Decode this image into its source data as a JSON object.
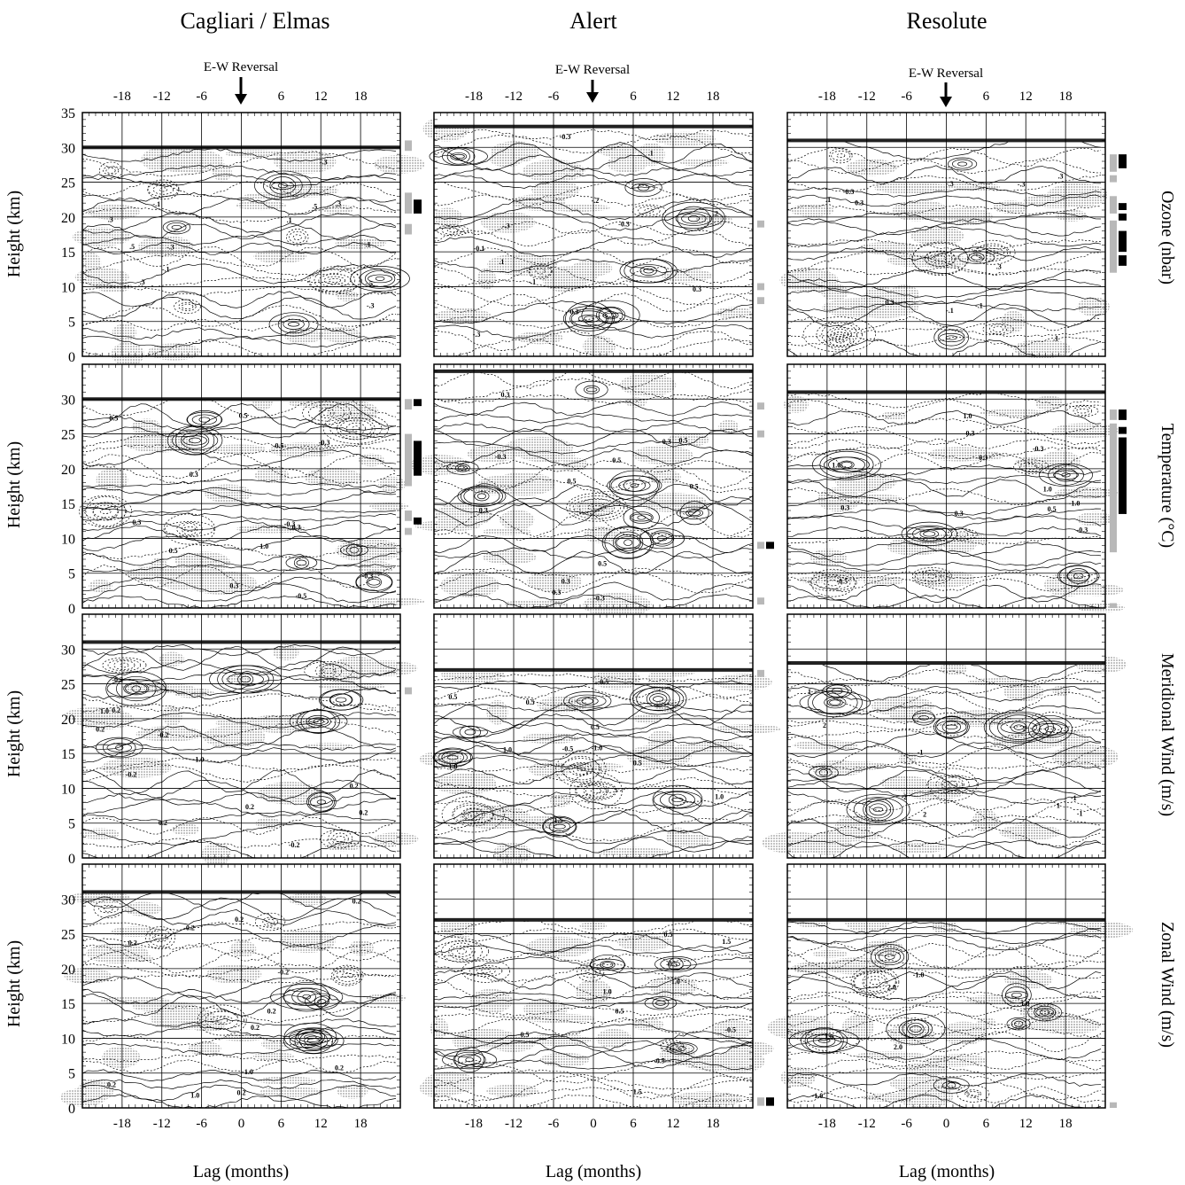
{
  "figure": {
    "columns": [
      "Cagliari / Elmas",
      "Alert",
      "Resolute"
    ],
    "row_labels": [
      "Ozone (nbar)",
      "Temperature (°C)",
      "Meridional Wind (m/s)",
      "Zonal Wind (m/s)"
    ],
    "y_axis_label": "Height (km)",
    "x_axis_label": "Lag (months)",
    "reversal_label": "E-W Reversal",
    "colors": {
      "shade": "#c8c8c8",
      "contour": "#000000",
      "grid": "#000000",
      "sig_gray": "#b8b8b8",
      "sig_black": "#000000"
    }
  },
  "chart_data": {
    "type": "heatmap",
    "description_units": {
      "x": "months",
      "y": "km"
    },
    "xlim": [
      -24,
      24
    ],
    "x_ticks": [
      -18,
      -12,
      -6,
      0,
      6,
      12,
      18
    ],
    "x_tick_labels": [
      "-18",
      "-12",
      "-6",
      "0",
      "6",
      "12",
      "18"
    ],
    "ylim": [
      0,
      35
    ],
    "y_ticks_top_row": [
      0,
      5,
      10,
      15,
      20,
      25,
      30,
      35
    ],
    "y_ticks_other_rows": [
      0,
      5,
      10,
      15,
      20,
      25,
      30
    ],
    "reversal_lag": 0,
    "panels": [
      {
        "station": "Cagliari / Elmas",
        "variable": "Ozone (nbar)",
        "data_top_km": 30,
        "contour_labels": [
          "-.3",
          "-.5",
          "-.3",
          ".3",
          ".5",
          ".5",
          ".3",
          ".3",
          "-.1",
          ".1",
          "-.1",
          "-.3",
          ".1"
        ]
      },
      {
        "station": "Alert",
        "variable": "Ozone (nbar)",
        "data_top_km": 33,
        "contour_labels": [
          ".1",
          "-.3",
          ".2",
          "-.2",
          ".1",
          "-.1",
          "-.3",
          "-0.3",
          "-0.1",
          "-0.3",
          "0.3",
          "0.3"
        ]
      },
      {
        "station": "Resolute",
        "variable": "Ozone (nbar)",
        "data_top_km": 31,
        "contour_labels": [
          ".3",
          ".3",
          "-.1",
          ".1",
          "-.3",
          "-.1",
          ".1",
          "-.3",
          "0.3",
          "0.3",
          "-0.3"
        ]
      },
      {
        "station": "Cagliari / Elmas",
        "variable": "Temperature (°C)",
        "data_top_km": 30,
        "contour_labels": [
          "-0.5",
          "0.5",
          "0.3",
          "-0.3",
          "0.3",
          "-0.5",
          "0.5",
          "-0.3",
          "0.3",
          "0.5",
          "1.0",
          "-0.3",
          "0.3"
        ]
      },
      {
        "station": "Alert",
        "variable": "Temperature (°C)",
        "data_top_km": 34,
        "contour_labels": [
          "0.5",
          "-0.3",
          "0.3",
          "0.3",
          "0.5",
          "-0.3",
          "0.5",
          "0.3",
          "0.3",
          "0.5",
          "0.3",
          "0.5"
        ]
      },
      {
        "station": "Resolute",
        "variable": "Temperature (°C)",
        "data_top_km": 31,
        "contour_labels": [
          "-1.0",
          "0.3",
          "1.0",
          "-0.3",
          "1.0",
          "0.3",
          "-0.3",
          "0.3",
          "0.5",
          "-0.5",
          "1.0",
          "0.3"
        ]
      },
      {
        "station": "Cagliari / Elmas",
        "variable": "Meridional Wind (m/s)",
        "data_top_km": 31,
        "contour_labels": [
          "0.2",
          "-0.2",
          "0.2",
          "-0.2",
          "0.2",
          "-0.2",
          "1.0",
          "-0.2",
          "0.2",
          "1.0",
          "0.2",
          "0.2"
        ]
      },
      {
        "station": "Alert",
        "variable": "Meridional Wind (m/s)",
        "data_top_km": 27,
        "contour_labels": [
          "0.5",
          "1.0",
          "0.5",
          "1.0",
          "-1.0",
          "0.5",
          "1.0",
          "0.5",
          "-0.5",
          "1.5",
          "0.5"
        ]
      },
      {
        "station": "Resolute",
        "variable": "Meridional Wind (m/s)",
        "data_top_km": 28,
        "contour_labels": [
          "-1",
          "2",
          "-2",
          "1",
          "2",
          "-1",
          "1",
          "-1",
          "2"
        ]
      },
      {
        "station": "Cagliari / Elmas",
        "variable": "Zonal Wind (m/s)",
        "data_top_km": 31,
        "contour_labels": [
          "0.2",
          "-0.2",
          "0.2",
          "0.2",
          "-0.2",
          "0.2",
          "1.0",
          "0.2",
          "0.2",
          "0.2",
          "1.0",
          "0.2"
        ]
      },
      {
        "station": "Alert",
        "variable": "Zonal Wind (m/s)",
        "data_top_km": 27,
        "contour_labels": [
          "1.5",
          "1.0",
          "0.5",
          "-0.5",
          "0.5",
          "1.5",
          "0.5",
          "-0.5",
          "1.0",
          "-0.5"
        ]
      },
      {
        "station": "Resolute",
        "variable": "Zonal Wind (m/s)",
        "data_top_km": 27,
        "contour_labels": [
          "2.0",
          "1.0",
          "-1.0",
          "2.0",
          "1.0",
          "-1.0"
        ]
      }
    ],
    "significance_bars": [
      {
        "panel": 0,
        "gray": [
          [
            29.5,
            31
          ],
          [
            20.5,
            23.5
          ],
          [
            17.5,
            19
          ]
        ],
        "black": [
          [
            20.5,
            22.5
          ]
        ]
      },
      {
        "panel": 1,
        "gray": [
          [
            18.5,
            19.5
          ],
          [
            9.5,
            10.5
          ],
          [
            7.5,
            8.5
          ]
        ],
        "black": []
      },
      {
        "panel": 2,
        "gray": [
          [
            26.5,
            29
          ],
          [
            25,
            26
          ],
          [
            20.5,
            23
          ],
          [
            12,
            19.5
          ]
        ],
        "black": [
          [
            27,
            29
          ],
          [
            21,
            22
          ],
          [
            19.5,
            20.5
          ],
          [
            15,
            18
          ],
          [
            13,
            14.5
          ]
        ]
      },
      {
        "panel": 3,
        "gray": [
          [
            28.5,
            30
          ],
          [
            17.5,
            25
          ],
          [
            12.5,
            14
          ],
          [
            10.5,
            11.5
          ]
        ],
        "black": [
          [
            29,
            30
          ],
          [
            19,
            24
          ],
          [
            12,
            13
          ]
        ]
      },
      {
        "panel": 4,
        "gray": [
          [
            28.5,
            29.5
          ],
          [
            24.5,
            25.5
          ],
          [
            8.5,
            9.5
          ],
          [
            0.5,
            1.5
          ]
        ],
        "black": [
          [
            8.5,
            9.5
          ]
        ]
      },
      {
        "panel": 5,
        "gray": [
          [
            27,
            28.5
          ],
          [
            8,
            26.5
          ],
          [
            0,
            0.7
          ]
        ],
        "black": [
          [
            27,
            28.5
          ],
          [
            25,
            26
          ],
          [
            13.5,
            24.5
          ]
        ]
      },
      {
        "panel": 6,
        "gray": [
          [
            23.5,
            24.5
          ]
        ],
        "black": []
      },
      {
        "panel": 7,
        "gray": [
          [
            26,
            27
          ]
        ],
        "black": []
      },
      {
        "panel": 9,
        "gray": [],
        "black": []
      },
      {
        "panel": 10,
        "gray": [
          [
            0.3,
            1.5
          ]
        ],
        "black": [
          [
            0.3,
            1.5
          ]
        ]
      },
      {
        "panel": 11,
        "gray": [
          [
            0,
            0.8
          ]
        ],
        "black": []
      }
    ]
  }
}
